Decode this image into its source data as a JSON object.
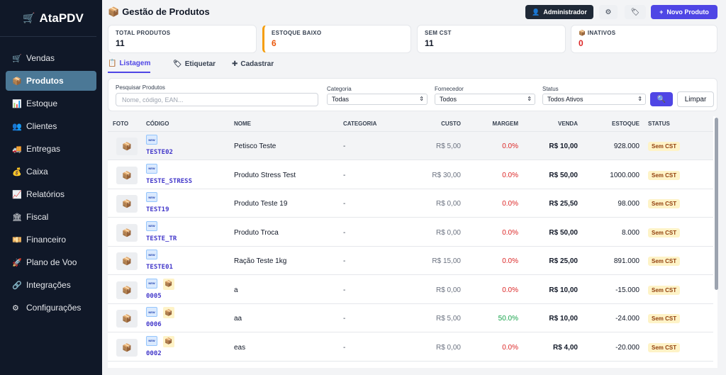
{
  "app": {
    "name": "AtaPDV",
    "logo_icon": "cart-icon"
  },
  "sidebar": {
    "items": [
      {
        "label": "Vendas",
        "icon": "cart-icon",
        "glyph": "🛒",
        "active": false
      },
      {
        "label": "Produtos",
        "icon": "box-icon",
        "glyph": "📦",
        "active": true
      },
      {
        "label": "Estoque",
        "icon": "bar-chart-icon",
        "glyph": "📊",
        "active": false
      },
      {
        "label": "Clientes",
        "icon": "users-icon",
        "glyph": "👥",
        "active": false
      },
      {
        "label": "Entregas",
        "icon": "truck-icon",
        "glyph": "🚚",
        "active": false
      },
      {
        "label": "Caixa",
        "icon": "money-bag-icon",
        "glyph": "💰",
        "active": false
      },
      {
        "label": "Relatórios",
        "icon": "line-chart-icon",
        "glyph": "📈",
        "active": false
      },
      {
        "label": "Fiscal",
        "icon": "bank-icon",
        "glyph": "🏛",
        "active": false
      },
      {
        "label": "Financeiro",
        "icon": "cash-icon",
        "glyph": "💴",
        "active": false
      },
      {
        "label": "Plano de Voo",
        "icon": "rocket-icon",
        "glyph": "🚀",
        "active": false
      },
      {
        "label": "Integrações",
        "icon": "link-icon",
        "glyph": "🔗",
        "active": false
      },
      {
        "label": "Configurações",
        "icon": "gear-icon",
        "glyph": "⚙",
        "active": false
      }
    ]
  },
  "header": {
    "title": "Gestão de Produtos",
    "title_icon": "box-icon",
    "user_label": "Administrador",
    "new_product_label": "Novo Produto"
  },
  "stats": [
    {
      "label": "TOTAL PRODUTOS",
      "value": "11",
      "color": "#111827",
      "icon": ""
    },
    {
      "label": "ESTOQUE BAIXO",
      "value": "6",
      "color": "#ea580c",
      "icon": ""
    },
    {
      "label": "SEM CST",
      "value": "11",
      "color": "#111827",
      "icon": ""
    },
    {
      "label": "INATIVOS",
      "value": "0",
      "color": "#dc2626",
      "icon": "box-icon"
    }
  ],
  "tabs": [
    {
      "label": "Listagem",
      "icon": "clipboard-icon",
      "active": true
    },
    {
      "label": "Etiquetar",
      "icon": "tag-icon",
      "active": false
    },
    {
      "label": "Cadastrar",
      "icon": "plus-icon",
      "active": false
    }
  ],
  "filters": {
    "search_label": "Pesquisar Produtos",
    "search_placeholder": "Nome, código, EAN...",
    "category_label": "Categoria",
    "category_value": "Todas",
    "supplier_label": "Fornecedor",
    "supplier_value": "Todos",
    "status_label": "Status",
    "status_value": "Todos Ativos",
    "clear_label": "Limpar"
  },
  "table": {
    "columns": [
      "FOTO",
      "CÓDIGO",
      "NOME",
      "CATEGORIA",
      "CUSTO",
      "MARGEM",
      "VENDA",
      "ESTOQUE",
      "STATUS"
    ],
    "rows": [
      {
        "code": "TESTE02",
        "name": "Petisco Teste",
        "category": "-",
        "cost": "R$ 5,00",
        "margin": "0.0%",
        "margin_color": "#dc2626",
        "price": "R$ 10,00",
        "stock": "928.000",
        "status": "Sem CST",
        "box_tag": false,
        "highlight": true
      },
      {
        "code": "TESTE_STRESS",
        "name": "Produto Stress Test",
        "category": "-",
        "cost": "R$ 30,00",
        "margin": "0.0%",
        "margin_color": "#dc2626",
        "price": "R$ 50,00",
        "stock": "1000.000",
        "status": "Sem CST",
        "box_tag": false,
        "highlight": false
      },
      {
        "code": "TEST19",
        "name": "Produto Teste 19",
        "category": "-",
        "cost": "R$ 0,00",
        "margin": "0.0%",
        "margin_color": "#dc2626",
        "price": "R$ 25,50",
        "stock": "98.000",
        "status": "Sem CST",
        "box_tag": false,
        "highlight": false
      },
      {
        "code": "TESTE_TR",
        "name": "Produto Troca",
        "category": "-",
        "cost": "R$ 0,00",
        "margin": "0.0%",
        "margin_color": "#dc2626",
        "price": "R$ 50,00",
        "stock": "8.000",
        "status": "Sem CST",
        "box_tag": false,
        "highlight": false
      },
      {
        "code": "TESTE01",
        "name": "Ração Teste 1kg",
        "category": "-",
        "cost": "R$ 15,00",
        "margin": "0.0%",
        "margin_color": "#dc2626",
        "price": "R$ 25,00",
        "stock": "891.000",
        "status": "Sem CST",
        "box_tag": false,
        "highlight": false
      },
      {
        "code": "0005",
        "name": "a",
        "category": "-",
        "cost": "R$ 0,00",
        "margin": "0.0%",
        "margin_color": "#dc2626",
        "price": "R$ 10,00",
        "stock": "-15.000",
        "status": "Sem CST",
        "box_tag": true,
        "highlight": false
      },
      {
        "code": "0006",
        "name": "aa",
        "category": "-",
        "cost": "R$ 5,00",
        "margin": "50.0%",
        "margin_color": "#16a34a",
        "price": "R$ 10,00",
        "stock": "-24.000",
        "status": "Sem CST",
        "box_tag": true,
        "highlight": false
      },
      {
        "code": "0002",
        "name": "eas",
        "category": "-",
        "cost": "R$ 0,00",
        "margin": "0.0%",
        "margin_color": "#dc2626",
        "price": "R$ 4,00",
        "stock": "-20.000",
        "status": "Sem CST",
        "box_tag": true,
        "highlight": false
      }
    ]
  },
  "colors": {
    "accent": "#4f46e5",
    "sidebar_bg": "#101828",
    "sidebar_active": "#4b7896"
  }
}
